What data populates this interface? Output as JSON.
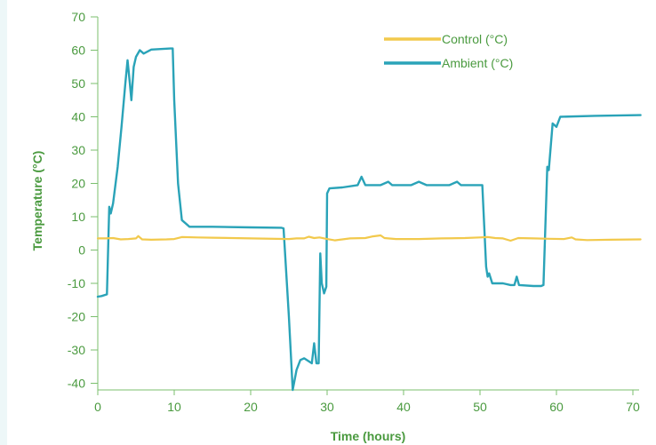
{
  "chart_data": {
    "type": "line",
    "title": "",
    "xlabel": "Time (hours)",
    "ylabel": "Temperature (°C)",
    "xlim": [
      0,
      71
    ],
    "ylim": [
      -42,
      70
    ],
    "x_ticks": [
      0,
      10,
      20,
      30,
      40,
      50,
      60,
      70
    ],
    "y_ticks": [
      70,
      60,
      50,
      40,
      30,
      20,
      10,
      0,
      -10,
      -20,
      -30,
      -40
    ],
    "grid": false,
    "legend_position": "top-right",
    "series": [
      {
        "name": "Control (°C)",
        "color": "#f2c94c",
        "points": [
          [
            0,
            3.5
          ],
          [
            1,
            3.5
          ],
          [
            2,
            3.6
          ],
          [
            3,
            3.2
          ],
          [
            4,
            3.3
          ],
          [
            5,
            3.5
          ],
          [
            5.3,
            4.2
          ],
          [
            5.8,
            3.2
          ],
          [
            7,
            3.1
          ],
          [
            9,
            3.2
          ],
          [
            10,
            3.3
          ],
          [
            11,
            3.9
          ],
          [
            13,
            3.8
          ],
          [
            15,
            3.7
          ],
          [
            20,
            3.5
          ],
          [
            25,
            3.3
          ],
          [
            26,
            3.5
          ],
          [
            27,
            3.5
          ],
          [
            27.6,
            4
          ],
          [
            28.3,
            3.6
          ],
          [
            29,
            3.8
          ],
          [
            30,
            3.3
          ],
          [
            31,
            2.9
          ],
          [
            32,
            3.2
          ],
          [
            33,
            3.5
          ],
          [
            35,
            3.6
          ],
          [
            36,
            4.1
          ],
          [
            37,
            4.4
          ],
          [
            37.5,
            3.6
          ],
          [
            39,
            3.3
          ],
          [
            42,
            3.3
          ],
          [
            45,
            3.5
          ],
          [
            48,
            3.6
          ],
          [
            50,
            3.8
          ],
          [
            51,
            3.9
          ],
          [
            52,
            3.6
          ],
          [
            53,
            3.5
          ],
          [
            54,
            2.8
          ],
          [
            54.5,
            3.2
          ],
          [
            55,
            3.6
          ],
          [
            57,
            3.5
          ],
          [
            59,
            3.4
          ],
          [
            61,
            3.3
          ],
          [
            62,
            3.8
          ],
          [
            62.5,
            3.2
          ],
          [
            64,
            3.0
          ],
          [
            67,
            3.1
          ],
          [
            71,
            3.2
          ]
        ]
      },
      {
        "name": "Ambient (°C)",
        "color": "#2aa3b8",
        "points": [
          [
            0,
            -14
          ],
          [
            0.5,
            -13.8
          ],
          [
            1.2,
            -13.3
          ],
          [
            1.5,
            13
          ],
          [
            1.7,
            11
          ],
          [
            2,
            14
          ],
          [
            2.6,
            25
          ],
          [
            3.1,
            37
          ],
          [
            3.6,
            50
          ],
          [
            3.9,
            57
          ],
          [
            4.2,
            50
          ],
          [
            4.4,
            45
          ],
          [
            4.7,
            55
          ],
          [
            5,
            58
          ],
          [
            5.5,
            60
          ],
          [
            6,
            59
          ],
          [
            7,
            60.2
          ],
          [
            9.5,
            60.5
          ],
          [
            9.8,
            60.5
          ],
          [
            10,
            45
          ],
          [
            10.5,
            20
          ],
          [
            11,
            9
          ],
          [
            12,
            7
          ],
          [
            15,
            7
          ],
          [
            20,
            6.8
          ],
          [
            24,
            6.7
          ],
          [
            24.3,
            6.5
          ],
          [
            25,
            -20
          ],
          [
            25.5,
            -42
          ],
          [
            26,
            -36
          ],
          [
            26.5,
            -33
          ],
          [
            27,
            -32.5
          ],
          [
            28,
            -34
          ],
          [
            28.3,
            -28
          ],
          [
            28.6,
            -34
          ],
          [
            28.9,
            -34
          ],
          [
            29.1,
            -1
          ],
          [
            29.3,
            -10
          ],
          [
            29.6,
            -13
          ],
          [
            29.9,
            -11
          ],
          [
            30,
            17
          ],
          [
            30.3,
            18.5
          ],
          [
            32,
            18.8
          ],
          [
            34,
            19.5
          ],
          [
            34.5,
            22
          ],
          [
            35,
            19.5
          ],
          [
            37,
            19.5
          ],
          [
            38,
            20.5
          ],
          [
            38.5,
            19.5
          ],
          [
            41,
            19.5
          ],
          [
            42,
            20.5
          ],
          [
            43,
            19.5
          ],
          [
            46,
            19.5
          ],
          [
            47,
            20.5
          ],
          [
            47.5,
            19.5
          ],
          [
            50,
            19.5
          ],
          [
            50.3,
            19.5
          ],
          [
            50.8,
            -5
          ],
          [
            51,
            -8
          ],
          [
            51.2,
            -7
          ],
          [
            51.6,
            -10
          ],
          [
            53,
            -10
          ],
          [
            54,
            -10.5
          ],
          [
            54.5,
            -10.5
          ],
          [
            54.8,
            -8
          ],
          [
            55.1,
            -10.5
          ],
          [
            57,
            -10.8
          ],
          [
            58,
            -10.8
          ],
          [
            58.3,
            -10.5
          ],
          [
            58.8,
            25
          ],
          [
            59,
            24
          ],
          [
            59.5,
            38
          ],
          [
            60,
            37
          ],
          [
            60.5,
            40
          ],
          [
            65,
            40.3
          ],
          [
            71,
            40.5
          ]
        ]
      }
    ]
  }
}
